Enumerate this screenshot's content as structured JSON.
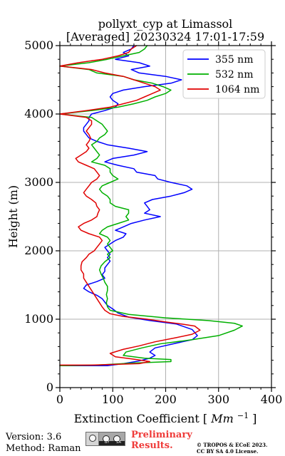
{
  "chart_data": {
    "type": "line",
    "title_line1": "pollyxt_cyp at Limassol",
    "title_line2": "[Averaged] 20230324 17:01-17:59",
    "xlabel_main": "Extinction Coefficient [",
    "xlabel_unit": "Mm",
    "xlabel_sup": "−1",
    "xlabel_end": "]",
    "ylabel": "Height (m)",
    "xlim": [
      0,
      400
    ],
    "ylim": [
      0,
      5000
    ],
    "xticks": [
      0,
      100,
      200,
      300,
      400
    ],
    "yticks": [
      0,
      1000,
      2000,
      3000,
      4000,
      5000
    ],
    "xtick_labels": [
      "0",
      "100",
      "200",
      "300",
      "400"
    ],
    "ytick_labels": [
      "0",
      "1000",
      "2000",
      "3000",
      "4000",
      "5000"
    ],
    "grid": true,
    "legend_position": "top-right",
    "series": [
      {
        "name": "355 nm",
        "color": "#0000ff",
        "points": [
          [
            0,
            320
          ],
          [
            90,
            320
          ],
          [
            120,
            350
          ],
          [
            150,
            390
          ],
          [
            170,
            430
          ],
          [
            180,
            470
          ],
          [
            170,
            520
          ],
          [
            180,
            580
          ],
          [
            220,
            650
          ],
          [
            250,
            700
          ],
          [
            260,
            760
          ],
          [
            250,
            850
          ],
          [
            220,
            930
          ],
          [
            170,
            980
          ],
          [
            130,
            1030
          ],
          [
            110,
            1090
          ],
          [
            100,
            1150
          ],
          [
            90,
            1200
          ],
          [
            85,
            1250
          ],
          [
            80,
            1300
          ],
          [
            70,
            1350
          ],
          [
            55,
            1400
          ],
          [
            45,
            1450
          ],
          [
            50,
            1500
          ],
          [
            70,
            1550
          ],
          [
            85,
            1600
          ],
          [
            80,
            1650
          ],
          [
            85,
            1700
          ],
          [
            85,
            1750
          ],
          [
            90,
            1800
          ],
          [
            95,
            1850
          ],
          [
            90,
            1900
          ],
          [
            95,
            1950
          ],
          [
            90,
            2000
          ],
          [
            85,
            2050
          ],
          [
            95,
            2100
          ],
          [
            105,
            2150
          ],
          [
            120,
            2200
          ],
          [
            125,
            2250
          ],
          [
            105,
            2300
          ],
          [
            120,
            2350
          ],
          [
            135,
            2400
          ],
          [
            160,
            2450
          ],
          [
            190,
            2500
          ],
          [
            160,
            2550
          ],
          [
            170,
            2600
          ],
          [
            165,
            2650
          ],
          [
            160,
            2700
          ],
          [
            175,
            2750
          ],
          [
            210,
            2800
          ],
          [
            235,
            2850
          ],
          [
            250,
            2900
          ],
          [
            240,
            2950
          ],
          [
            210,
            3000
          ],
          [
            185,
            3050
          ],
          [
            180,
            3100
          ],
          [
            145,
            3150
          ],
          [
            140,
            3200
          ],
          [
            110,
            3250
          ],
          [
            85,
            3300
          ],
          [
            100,
            3350
          ],
          [
            140,
            3400
          ],
          [
            165,
            3450
          ],
          [
            130,
            3500
          ],
          [
            90,
            3550
          ],
          [
            70,
            3600
          ],
          [
            55,
            3650
          ],
          [
            50,
            3700
          ],
          [
            45,
            3750
          ],
          [
            45,
            3800
          ],
          [
            50,
            3850
          ],
          [
            55,
            3900
          ],
          [
            55,
            3950
          ],
          [
            60,
            4000
          ],
          [
            85,
            4050
          ],
          [
            105,
            4100
          ],
          [
            110,
            4150
          ],
          [
            100,
            4200
          ],
          [
            95,
            4250
          ],
          [
            100,
            4300
          ],
          [
            120,
            4350
          ],
          [
            160,
            4400
          ],
          [
            210,
            4450
          ],
          [
            230,
            4500
          ],
          [
            200,
            4550
          ],
          [
            150,
            4600
          ],
          [
            135,
            4650
          ],
          [
            170,
            4700
          ],
          [
            150,
            4750
          ],
          [
            105,
            4800
          ],
          [
            130,
            4850
          ],
          [
            120,
            4900
          ],
          [
            135,
            4950
          ],
          [
            140,
            5000
          ]
        ]
      },
      {
        "name": "532 nm",
        "color": "#00b000",
        "points": [
          [
            0,
            320
          ],
          [
            70,
            330
          ],
          [
            140,
            360
          ],
          [
            210,
            380
          ],
          [
            210,
            410
          ],
          [
            160,
            430
          ],
          [
            120,
            470
          ],
          [
            125,
            520
          ],
          [
            155,
            580
          ],
          [
            190,
            640
          ],
          [
            250,
            700
          ],
          [
            300,
            760
          ],
          [
            330,
            840
          ],
          [
            345,
            900
          ],
          [
            330,
            940
          ],
          [
            280,
            980
          ],
          [
            200,
            1020
          ],
          [
            130,
            1070
          ],
          [
            95,
            1130
          ],
          [
            90,
            1180
          ],
          [
            88,
            1240
          ],
          [
            90,
            1300
          ],
          [
            88,
            1360
          ],
          [
            90,
            1420
          ],
          [
            90,
            1480
          ],
          [
            85,
            1540
          ],
          [
            82,
            1600
          ],
          [
            78,
            1660
          ],
          [
            75,
            1720
          ],
          [
            78,
            1780
          ],
          [
            85,
            1840
          ],
          [
            95,
            1900
          ],
          [
            90,
            1950
          ],
          [
            100,
            2000
          ],
          [
            95,
            2050
          ],
          [
            90,
            2100
          ],
          [
            95,
            2150
          ],
          [
            90,
            2200
          ],
          [
            75,
            2250
          ],
          [
            80,
            2300
          ],
          [
            90,
            2350
          ],
          [
            110,
            2400
          ],
          [
            130,
            2450
          ],
          [
            125,
            2500
          ],
          [
            130,
            2550
          ],
          [
            130,
            2600
          ],
          [
            105,
            2650
          ],
          [
            95,
            2700
          ],
          [
            95,
            2750
          ],
          [
            90,
            2800
          ],
          [
            80,
            2850
          ],
          [
            75,
            2900
          ],
          [
            80,
            2950
          ],
          [
            95,
            3000
          ],
          [
            110,
            3050
          ],
          [
            100,
            3100
          ],
          [
            95,
            3150
          ],
          [
            95,
            3200
          ],
          [
            85,
            3250
          ],
          [
            60,
            3300
          ],
          [
            70,
            3350
          ],
          [
            75,
            3400
          ],
          [
            70,
            3450
          ],
          [
            65,
            3500
          ],
          [
            60,
            3550
          ],
          [
            70,
            3600
          ],
          [
            75,
            3650
          ],
          [
            85,
            3700
          ],
          [
            90,
            3750
          ],
          [
            85,
            3800
          ],
          [
            80,
            3850
          ],
          [
            70,
            3900
          ],
          [
            60,
            3950
          ],
          [
            0,
            4000
          ],
          [
            60,
            4050
          ],
          [
            110,
            4100
          ],
          [
            140,
            4150
          ],
          [
            165,
            4200
          ],
          [
            180,
            4250
          ],
          [
            200,
            4300
          ],
          [
            210,
            4350
          ],
          [
            195,
            4400
          ],
          [
            175,
            4450
          ],
          [
            140,
            4500
          ],
          [
            120,
            4550
          ],
          [
            70,
            4600
          ],
          [
            55,
            4650
          ],
          [
            0,
            4700
          ],
          [
            55,
            4750
          ],
          [
            90,
            4800
          ],
          [
            120,
            4850
          ],
          [
            150,
            4900
          ],
          [
            160,
            4950
          ],
          [
            165,
            5000
          ]
        ]
      },
      {
        "name": "1064 nm",
        "color": "#e00000",
        "points": [
          [
            0,
            330
          ],
          [
            60,
            330
          ],
          [
            150,
            350
          ],
          [
            170,
            380
          ],
          [
            145,
            410
          ],
          [
            105,
            450
          ],
          [
            95,
            500
          ],
          [
            120,
            560
          ],
          [
            150,
            610
          ],
          [
            180,
            670
          ],
          [
            220,
            730
          ],
          [
            250,
            780
          ],
          [
            265,
            840
          ],
          [
            255,
            900
          ],
          [
            230,
            930
          ],
          [
            200,
            960
          ],
          [
            165,
            1000
          ],
          [
            120,
            1040
          ],
          [
            95,
            1080
          ],
          [
            85,
            1130
          ],
          [
            80,
            1180
          ],
          [
            75,
            1240
          ],
          [
            70,
            1300
          ],
          [
            65,
            1360
          ],
          [
            60,
            1420
          ],
          [
            55,
            1480
          ],
          [
            50,
            1540
          ],
          [
            45,
            1600
          ],
          [
            45,
            1660
          ],
          [
            40,
            1720
          ],
          [
            40,
            1780
          ],
          [
            42,
            1840
          ],
          [
            50,
            1900
          ],
          [
            55,
            1950
          ],
          [
            65,
            2000
          ],
          [
            70,
            2050
          ],
          [
            75,
            2100
          ],
          [
            80,
            2150
          ],
          [
            75,
            2200
          ],
          [
            55,
            2250
          ],
          [
            40,
            2300
          ],
          [
            35,
            2350
          ],
          [
            45,
            2400
          ],
          [
            60,
            2450
          ],
          [
            70,
            2500
          ],
          [
            72,
            2550
          ],
          [
            75,
            2600
          ],
          [
            70,
            2650
          ],
          [
            68,
            2700
          ],
          [
            60,
            2750
          ],
          [
            50,
            2800
          ],
          [
            45,
            2850
          ],
          [
            50,
            2900
          ],
          [
            55,
            2950
          ],
          [
            60,
            3000
          ],
          [
            70,
            3050
          ],
          [
            75,
            3100
          ],
          [
            70,
            3150
          ],
          [
            65,
            3200
          ],
          [
            50,
            3250
          ],
          [
            35,
            3300
          ],
          [
            30,
            3350
          ],
          [
            40,
            3400
          ],
          [
            50,
            3450
          ],
          [
            55,
            3500
          ],
          [
            50,
            3550
          ],
          [
            55,
            3600
          ],
          [
            58,
            3650
          ],
          [
            55,
            3700
          ],
          [
            50,
            3750
          ],
          [
            55,
            3800
          ],
          [
            60,
            3850
          ],
          [
            60,
            3900
          ],
          [
            50,
            3950
          ],
          [
            0,
            4000
          ],
          [
            50,
            4050
          ],
          [
            95,
            4100
          ],
          [
            120,
            4150
          ],
          [
            145,
            4200
          ],
          [
            160,
            4250
          ],
          [
            175,
            4300
          ],
          [
            190,
            4350
          ],
          [
            180,
            4400
          ],
          [
            160,
            4450
          ],
          [
            140,
            4500
          ],
          [
            120,
            4550
          ],
          [
            85,
            4600
          ],
          [
            60,
            4650
          ],
          [
            0,
            4700
          ],
          [
            35,
            4750
          ],
          [
            80,
            4800
          ],
          [
            110,
            4850
          ],
          [
            130,
            4900
          ],
          [
            135,
            4950
          ],
          [
            145,
            5000
          ]
        ]
      }
    ]
  },
  "footer": {
    "version_label": "Version: 3.6",
    "method_label": "Method: Raman",
    "preliminary_line1": "Preliminary",
    "preliminary_line2": "Results.",
    "copyright_line1": "© TROPOS & ECoE 2023.",
    "copyright_line2": "CC BY SA 4.0 License.",
    "license_badge": "CC BY SA",
    "license_badge_by": "BY",
    "license_badge_sa": "SA"
  }
}
